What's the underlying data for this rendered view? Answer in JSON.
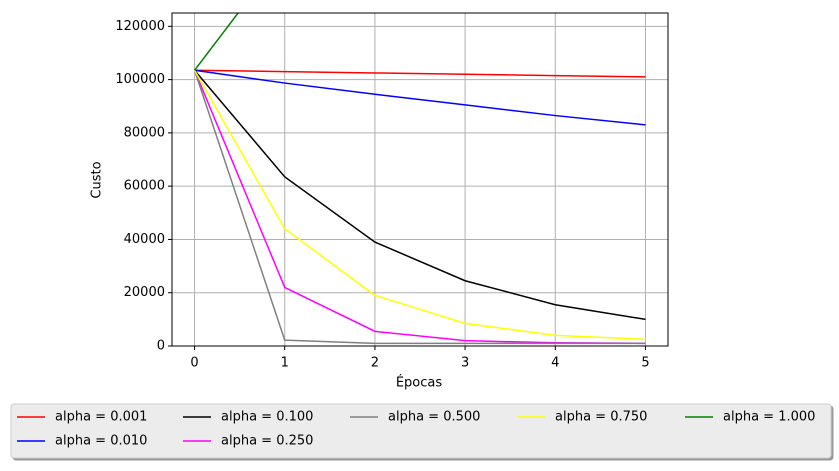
{
  "chart_data": {
    "type": "line",
    "x_label": "Épocas",
    "y_label": "Custo",
    "x": [
      0,
      1,
      2,
      3,
      4,
      5
    ],
    "xlim": [
      -0.25,
      5.25
    ],
    "xticks": [
      0,
      1,
      2,
      3,
      4,
      5
    ],
    "ylim": [
      0,
      125000
    ],
    "yticks": [
      0,
      20000,
      40000,
      60000,
      80000,
      100000,
      120000
    ],
    "grid": true,
    "legend": "bottom",
    "series": [
      {
        "name": "alpha = 0.001",
        "color": "#ff0000",
        "values": [
          103500,
          103000,
          102500,
          102000,
          101500,
          101000
        ]
      },
      {
        "name": "alpha = 0.010",
        "color": "#0000ff",
        "values": [
          103500,
          98700,
          94500,
          90500,
          86500,
          83000
        ]
      },
      {
        "name": "alpha = 0.100",
        "color": "#000000",
        "values": [
          103500,
          63500,
          39000,
          24500,
          15500,
          10000
        ]
      },
      {
        "name": "alpha = 0.250",
        "color": "#ff00ff",
        "values": [
          103500,
          22000,
          5500,
          2000,
          1200,
          1000
        ]
      },
      {
        "name": "alpha = 0.500",
        "color": "#808080",
        "values": [
          103500,
          2200,
          1000,
          1000,
          1000,
          1000
        ]
      },
      {
        "name": "alpha = 0.750",
        "color": "#ffff00",
        "values": [
          103500,
          44000,
          19000,
          8500,
          4000,
          2500
        ]
      },
      {
        "name": "alpha = 1.000",
        "color": "#008000",
        "values": [
          103500,
          148000,
          null,
          null,
          null,
          null
        ]
      }
    ]
  }
}
